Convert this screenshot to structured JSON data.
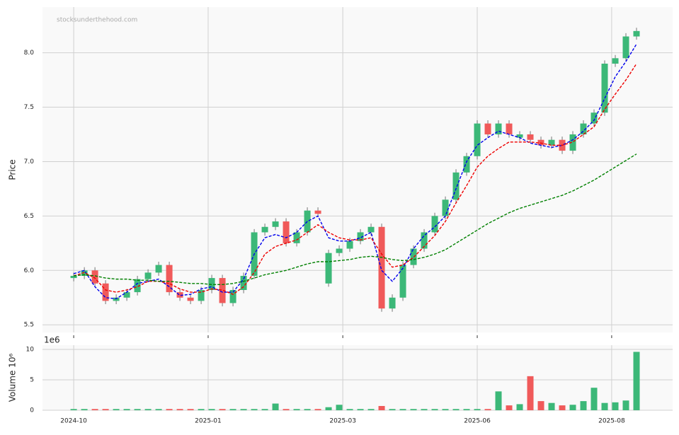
{
  "chart_data": {
    "type": "candlestick",
    "watermark": "stocksunderthehood.com",
    "ylabel": "Price",
    "volume_label": "Volume  10⁶",
    "volume_offset": "1e6",
    "x": [
      0,
      5,
      10,
      15,
      20,
      25,
      30,
      35,
      40,
      45,
      50,
      55,
      60,
      65,
      70,
      75,
      80,
      85,
      90,
      95,
      100,
      105,
      110,
      115,
      120,
      125,
      130,
      135,
      140,
      145,
      150,
      155,
      160,
      165,
      170,
      175,
      180,
      185,
      190,
      195,
      200,
      205,
      210,
      215,
      220,
      225,
      230,
      235,
      240,
      245,
      250,
      255,
      260,
      265
    ],
    "open": [
      5.93,
      5.95,
      6.0,
      5.88,
      5.72,
      5.75,
      5.8,
      5.92,
      5.98,
      6.05,
      5.8,
      5.75,
      5.72,
      5.82,
      5.93,
      5.7,
      5.82,
      5.95,
      6.35,
      6.4,
      6.45,
      6.25,
      6.35,
      6.55,
      5.88,
      6.16,
      6.2,
      6.27,
      6.35,
      6.4,
      5.65,
      5.75,
      6.05,
      6.2,
      6.35,
      6.5,
      6.65,
      6.9,
      7.05,
      7.35,
      7.25,
      7.35,
      7.22,
      7.25,
      7.2,
      7.15,
      7.2,
      7.1,
      7.25,
      7.35,
      7.45,
      7.9,
      7.95,
      8.15
    ],
    "high": [
      5.98,
      6.03,
      6.03,
      5.91,
      5.78,
      5.83,
      5.95,
      6.01,
      6.08,
      6.08,
      5.83,
      5.78,
      5.85,
      5.96,
      5.96,
      5.85,
      5.98,
      6.38,
      6.43,
      6.48,
      6.48,
      6.38,
      6.58,
      6.58,
      6.19,
      6.23,
      6.3,
      6.38,
      6.43,
      6.43,
      5.78,
      6.08,
      6.23,
      6.38,
      6.53,
      6.68,
      6.93,
      7.08,
      7.38,
      7.38,
      7.38,
      7.38,
      7.28,
      7.28,
      7.23,
      7.23,
      7.23,
      7.28,
      7.38,
      7.48,
      7.93,
      7.98,
      8.18,
      8.23
    ],
    "low": [
      5.9,
      5.92,
      5.85,
      5.69,
      5.69,
      5.72,
      5.77,
      5.89,
      5.95,
      5.77,
      5.72,
      5.69,
      5.69,
      5.79,
      5.67,
      5.67,
      5.79,
      5.92,
      6.32,
      6.37,
      6.22,
      6.22,
      6.32,
      6.49,
      5.85,
      6.13,
      6.17,
      6.24,
      6.32,
      5.62,
      5.62,
      5.72,
      6.02,
      6.17,
      6.32,
      6.47,
      6.62,
      6.87,
      7.02,
      7.22,
      7.22,
      7.22,
      7.19,
      7.17,
      7.12,
      7.12,
      7.07,
      7.07,
      7.22,
      7.32,
      7.42,
      7.87,
      7.92,
      8.12
    ],
    "close": [
      5.95,
      6.0,
      5.88,
      5.72,
      5.75,
      5.8,
      5.92,
      5.98,
      6.05,
      5.8,
      5.75,
      5.72,
      5.82,
      5.93,
      5.7,
      5.82,
      5.95,
      6.35,
      6.4,
      6.45,
      6.25,
      6.35,
      6.55,
      6.52,
      6.16,
      6.2,
      6.27,
      6.35,
      6.4,
      5.65,
      5.75,
      6.05,
      6.2,
      6.35,
      6.5,
      6.65,
      6.9,
      7.05,
      7.35,
      7.25,
      7.35,
      7.25,
      7.25,
      7.2,
      7.15,
      7.2,
      7.1,
      7.25,
      7.35,
      7.45,
      7.9,
      7.95,
      8.15,
      8.2
    ],
    "volume": [
      0.2,
      0.2,
      0.2,
      0.2,
      0.2,
      0.2,
      0.2,
      0.2,
      0.2,
      0.2,
      0.2,
      0.2,
      0.2,
      0.2,
      0.2,
      0.2,
      0.2,
      0.2,
      0.2,
      1.1,
      0.2,
      0.2,
      0.2,
      0.2,
      0.5,
      0.9,
      0.2,
      0.2,
      0.2,
      0.7,
      0.2,
      0.2,
      0.2,
      0.2,
      0.2,
      0.2,
      0.2,
      0.2,
      0.2,
      0.2,
      3.1,
      0.8,
      1.0,
      5.6,
      1.5,
      1.2,
      0.8,
      0.9,
      1.5,
      3.7,
      1.2,
      1.3,
      1.6,
      9.6
    ],
    "up_color": "#3cb878",
    "down_color": "#f05a5a",
    "moving_averages": [
      {
        "color": "#0000ee",
        "values": [
          5.97,
          6.0,
          5.85,
          5.75,
          5.74,
          5.8,
          5.88,
          5.9,
          5.92,
          5.85,
          5.77,
          5.78,
          5.83,
          5.85,
          5.8,
          5.8,
          5.92,
          6.15,
          6.3,
          6.33,
          6.3,
          6.35,
          6.45,
          6.5,
          6.3,
          6.27,
          6.27,
          6.3,
          6.35,
          6.0,
          5.9,
          6.02,
          6.2,
          6.32,
          6.4,
          6.5,
          6.75,
          7.0,
          7.15,
          7.22,
          7.28,
          7.25,
          7.22,
          7.17,
          7.15,
          7.13,
          7.15,
          7.2,
          7.28,
          7.38,
          7.58,
          7.78,
          7.92,
          8.08
        ]
      },
      {
        "color": "#ee0000",
        "values": [
          5.95,
          5.98,
          5.93,
          5.82,
          5.8,
          5.82,
          5.85,
          5.9,
          5.9,
          5.88,
          5.83,
          5.8,
          5.8,
          5.83,
          5.82,
          5.78,
          5.85,
          5.98,
          6.15,
          6.22,
          6.25,
          6.28,
          6.35,
          6.42,
          6.35,
          6.3,
          6.28,
          6.28,
          6.3,
          6.15,
          6.03,
          6.05,
          6.12,
          6.22,
          6.32,
          6.45,
          6.62,
          6.78,
          6.95,
          7.05,
          7.12,
          7.18,
          7.18,
          7.18,
          7.17,
          7.15,
          7.15,
          7.18,
          7.25,
          7.32,
          7.48,
          7.62,
          7.75,
          7.9
        ]
      },
      {
        "color": "#008000",
        "values": [
          5.95,
          5.96,
          5.95,
          5.93,
          5.92,
          5.92,
          5.91,
          5.91,
          5.9,
          5.9,
          5.89,
          5.88,
          5.88,
          5.87,
          5.87,
          5.88,
          5.9,
          5.93,
          5.96,
          5.98,
          6.0,
          6.03,
          6.06,
          6.08,
          6.08,
          6.09,
          6.1,
          6.12,
          6.13,
          6.12,
          6.1,
          6.09,
          6.1,
          6.12,
          6.15,
          6.19,
          6.25,
          6.31,
          6.37,
          6.43,
          6.48,
          6.53,
          6.57,
          6.6,
          6.63,
          6.66,
          6.69,
          6.73,
          6.78,
          6.83,
          6.89,
          6.95,
          7.01,
          7.07
        ]
      }
    ],
    "xlim": [
      -14.7,
      282
    ],
    "xticks": [
      {
        "value": 0,
        "label": "2024-10"
      },
      {
        "value": 63.3,
        "label": "2025-01"
      },
      {
        "value": 126.7,
        "label": "2025-03"
      },
      {
        "value": 190,
        "label": "2025-06"
      },
      {
        "value": 253.3,
        "label": "2025-08"
      }
    ],
    "ylim": [
      5.43,
      8.42
    ],
    "yticks": [
      5.5,
      {
        "value": 6,
        "label": "6.0"
      },
      6.5,
      {
        "value": 7,
        "label": "7.0"
      },
      7.5,
      {
        "value": 8,
        "label": "8.0"
      }
    ],
    "volume_ylim": [
      0,
      10.7
    ],
    "volume_yticks": [
      0,
      5,
      10
    ],
    "grid": true
  }
}
